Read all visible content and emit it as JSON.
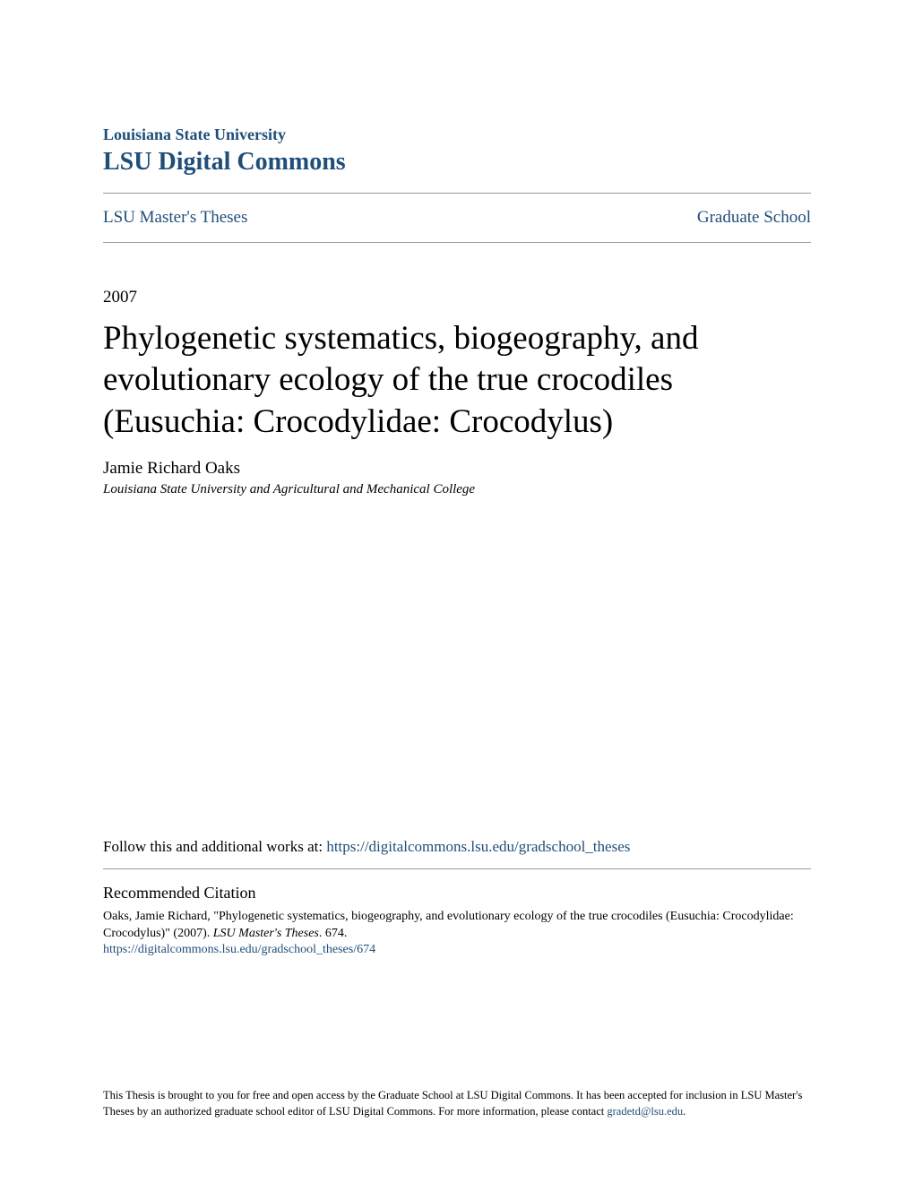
{
  "header": {
    "institution": "Louisiana State University",
    "repository": "LSU Digital Commons"
  },
  "breadcrumb": {
    "left": "LSU Master's Theses",
    "right": "Graduate School"
  },
  "document": {
    "year": "2007",
    "title": "Phylogenetic systematics, biogeography, and evolutionary ecology of the true crocodiles (Eusuchia: Crocodylidae: Crocodylus)",
    "author": "Jamie Richard Oaks",
    "affiliation": "Louisiana State University and Agricultural and Mechanical College"
  },
  "follow": {
    "label": "Follow this and additional works at: ",
    "url": "https://digitalcommons.lsu.edu/gradschool_theses"
  },
  "citation": {
    "heading": "Recommended Citation",
    "text_part1": "Oaks, Jamie Richard, \"Phylogenetic systematics, biogeography, and evolutionary ecology of the true crocodiles (Eusuchia: Crocodylidae: Crocodylus)\" (2007). ",
    "text_italic": "LSU Master's Theses",
    "text_part2": ". 674.",
    "url": "https://digitalcommons.lsu.edu/gradschool_theses/674"
  },
  "footer": {
    "text_part1": "This Thesis is brought to you for free and open access by the Graduate School at LSU Digital Commons. It has been accepted for inclusion in LSU Master's Theses by an authorized graduate school editor of LSU Digital Commons. For more information, please contact ",
    "email": "gradetd@lsu.edu",
    "text_part2": "."
  },
  "colors": {
    "link": "#1f4e79",
    "text": "#000000",
    "divider": "#999999",
    "background": "#ffffff"
  }
}
